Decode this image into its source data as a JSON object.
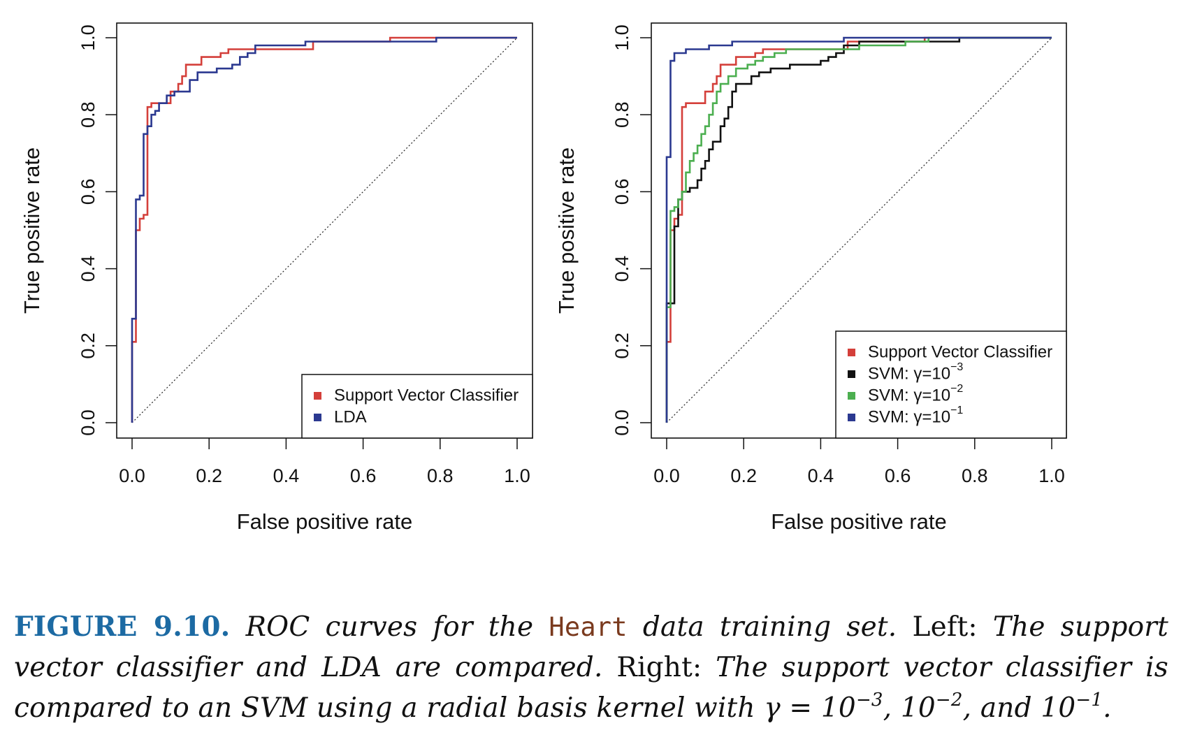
{
  "chart_data": [
    {
      "type": "line",
      "xlabel": "False positive rate",
      "ylabel": "True positive rate",
      "xlim": [
        0,
        1
      ],
      "ylim": [
        0,
        1
      ],
      "xticks": [
        "0.0",
        "0.2",
        "0.4",
        "0.6",
        "0.8",
        "1.0"
      ],
      "yticks": [
        "0.0",
        "0.2",
        "0.4",
        "0.6",
        "0.8",
        "1.0"
      ],
      "legend_position": "bottom-right",
      "diagonal_reference": true,
      "series": [
        {
          "name": "Support Vector Classifier",
          "color": "#d43f3a",
          "points": [
            [
              0,
              0
            ],
            [
              0,
              0.21
            ],
            [
              0.01,
              0.21
            ],
            [
              0.01,
              0.5
            ],
            [
              0.02,
              0.5
            ],
            [
              0.02,
              0.53
            ],
            [
              0.03,
              0.53
            ],
            [
              0.03,
              0.54
            ],
            [
              0.04,
              0.54
            ],
            [
              0.04,
              0.82
            ],
            [
              0.05,
              0.82
            ],
            [
              0.05,
              0.83
            ],
            [
              0.1,
              0.83
            ],
            [
              0.1,
              0.86
            ],
            [
              0.12,
              0.86
            ],
            [
              0.12,
              0.88
            ],
            [
              0.13,
              0.88
            ],
            [
              0.13,
              0.9
            ],
            [
              0.14,
              0.9
            ],
            [
              0.14,
              0.93
            ],
            [
              0.18,
              0.93
            ],
            [
              0.18,
              0.95
            ],
            [
              0.23,
              0.95
            ],
            [
              0.23,
              0.96
            ],
            [
              0.25,
              0.96
            ],
            [
              0.25,
              0.97
            ],
            [
              0.33,
              0.97
            ],
            [
              0.47,
              0.97
            ],
            [
              0.47,
              0.99
            ],
            [
              0.67,
              0.99
            ],
            [
              0.67,
              1.0
            ],
            [
              1.0,
              1.0
            ]
          ]
        },
        {
          "name": "LDA",
          "color": "#2b3990",
          "points": [
            [
              0,
              0
            ],
            [
              0,
              0.27
            ],
            [
              0.01,
              0.27
            ],
            [
              0.01,
              0.58
            ],
            [
              0.02,
              0.58
            ],
            [
              0.02,
              0.59
            ],
            [
              0.03,
              0.59
            ],
            [
              0.03,
              0.75
            ],
            [
              0.04,
              0.75
            ],
            [
              0.04,
              0.77
            ],
            [
              0.05,
              0.77
            ],
            [
              0.05,
              0.8
            ],
            [
              0.06,
              0.8
            ],
            [
              0.06,
              0.81
            ],
            [
              0.07,
              0.81
            ],
            [
              0.07,
              0.83
            ],
            [
              0.09,
              0.83
            ],
            [
              0.09,
              0.85
            ],
            [
              0.11,
              0.85
            ],
            [
              0.11,
              0.86
            ],
            [
              0.15,
              0.86
            ],
            [
              0.15,
              0.89
            ],
            [
              0.17,
              0.89
            ],
            [
              0.17,
              0.91
            ],
            [
              0.22,
              0.91
            ],
            [
              0.22,
              0.92
            ],
            [
              0.26,
              0.92
            ],
            [
              0.26,
              0.93
            ],
            [
              0.28,
              0.93
            ],
            [
              0.28,
              0.95
            ],
            [
              0.3,
              0.95
            ],
            [
              0.3,
              0.96
            ],
            [
              0.32,
              0.96
            ],
            [
              0.32,
              0.98
            ],
            [
              0.45,
              0.98
            ],
            [
              0.45,
              0.99
            ],
            [
              0.79,
              0.99
            ],
            [
              0.79,
              1.0
            ],
            [
              1.0,
              1.0
            ]
          ]
        }
      ]
    },
    {
      "type": "line",
      "xlabel": "False positive rate",
      "ylabel": "True positive rate",
      "xlim": [
        0,
        1
      ],
      "ylim": [
        0,
        1
      ],
      "xticks": [
        "0.0",
        "0.2",
        "0.4",
        "0.6",
        "0.8",
        "1.0"
      ],
      "yticks": [
        "0.0",
        "0.2",
        "0.4",
        "0.6",
        "0.8",
        "1.0"
      ],
      "legend_position": "bottom-right",
      "diagonal_reference": true,
      "series": [
        {
          "name": "Support Vector Classifier",
          "color": "#d43f3a",
          "points": [
            [
              0,
              0
            ],
            [
              0,
              0.21
            ],
            [
              0.01,
              0.21
            ],
            [
              0.01,
              0.5
            ],
            [
              0.02,
              0.5
            ],
            [
              0.02,
              0.53
            ],
            [
              0.03,
              0.53
            ],
            [
              0.03,
              0.54
            ],
            [
              0.04,
              0.54
            ],
            [
              0.04,
              0.82
            ],
            [
              0.05,
              0.82
            ],
            [
              0.05,
              0.83
            ],
            [
              0.1,
              0.83
            ],
            [
              0.1,
              0.86
            ],
            [
              0.12,
              0.86
            ],
            [
              0.12,
              0.88
            ],
            [
              0.13,
              0.88
            ],
            [
              0.13,
              0.9
            ],
            [
              0.14,
              0.9
            ],
            [
              0.14,
              0.93
            ],
            [
              0.18,
              0.93
            ],
            [
              0.18,
              0.95
            ],
            [
              0.23,
              0.95
            ],
            [
              0.23,
              0.96
            ],
            [
              0.25,
              0.96
            ],
            [
              0.25,
              0.97
            ],
            [
              0.33,
              0.97
            ],
            [
              0.47,
              0.97
            ],
            [
              0.47,
              0.99
            ],
            [
              0.67,
              0.99
            ],
            [
              0.67,
              1.0
            ],
            [
              1.0,
              1.0
            ]
          ]
        },
        {
          "name": "SVM: γ=10",
          "exponent": "−3",
          "color": "#111111",
          "points": [
            [
              0,
              0
            ],
            [
              0,
              0.31
            ],
            [
              0.02,
              0.31
            ],
            [
              0.02,
              0.51
            ],
            [
              0.03,
              0.51
            ],
            [
              0.03,
              0.58
            ],
            [
              0.04,
              0.58
            ],
            [
              0.04,
              0.6
            ],
            [
              0.06,
              0.6
            ],
            [
              0.06,
              0.61
            ],
            [
              0.08,
              0.61
            ],
            [
              0.08,
              0.63
            ],
            [
              0.09,
              0.63
            ],
            [
              0.09,
              0.66
            ],
            [
              0.1,
              0.66
            ],
            [
              0.1,
              0.68
            ],
            [
              0.11,
              0.68
            ],
            [
              0.11,
              0.71
            ],
            [
              0.12,
              0.71
            ],
            [
              0.12,
              0.73
            ],
            [
              0.14,
              0.73
            ],
            [
              0.14,
              0.77
            ],
            [
              0.15,
              0.77
            ],
            [
              0.15,
              0.79
            ],
            [
              0.16,
              0.79
            ],
            [
              0.16,
              0.82
            ],
            [
              0.17,
              0.82
            ],
            [
              0.17,
              0.86
            ],
            [
              0.18,
              0.86
            ],
            [
              0.18,
              0.88
            ],
            [
              0.22,
              0.88
            ],
            [
              0.22,
              0.9
            ],
            [
              0.24,
              0.9
            ],
            [
              0.24,
              0.91
            ],
            [
              0.27,
              0.91
            ],
            [
              0.27,
              0.92
            ],
            [
              0.32,
              0.92
            ],
            [
              0.32,
              0.93
            ],
            [
              0.4,
              0.93
            ],
            [
              0.4,
              0.94
            ],
            [
              0.42,
              0.94
            ],
            [
              0.42,
              0.95
            ],
            [
              0.44,
              0.95
            ],
            [
              0.44,
              0.96
            ],
            [
              0.46,
              0.96
            ],
            [
              0.46,
              0.98
            ],
            [
              0.5,
              0.98
            ],
            [
              0.5,
              0.99
            ],
            [
              0.76,
              0.99
            ],
            [
              0.76,
              1.0
            ],
            [
              1.0,
              1.0
            ]
          ]
        },
        {
          "name": "SVM: γ=10",
          "exponent": "−2",
          "color": "#4caf50",
          "points": [
            [
              0,
              0
            ],
            [
              0,
              0.3
            ],
            [
              0.01,
              0.3
            ],
            [
              0.01,
              0.55
            ],
            [
              0.02,
              0.55
            ],
            [
              0.02,
              0.56
            ],
            [
              0.03,
              0.56
            ],
            [
              0.03,
              0.58
            ],
            [
              0.04,
              0.58
            ],
            [
              0.04,
              0.6
            ],
            [
              0.05,
              0.6
            ],
            [
              0.05,
              0.65
            ],
            [
              0.06,
              0.65
            ],
            [
              0.06,
              0.68
            ],
            [
              0.07,
              0.68
            ],
            [
              0.07,
              0.7
            ],
            [
              0.08,
              0.7
            ],
            [
              0.08,
              0.72
            ],
            [
              0.09,
              0.72
            ],
            [
              0.09,
              0.75
            ],
            [
              0.1,
              0.75
            ],
            [
              0.1,
              0.77
            ],
            [
              0.11,
              0.77
            ],
            [
              0.11,
              0.8
            ],
            [
              0.12,
              0.8
            ],
            [
              0.12,
              0.83
            ],
            [
              0.13,
              0.83
            ],
            [
              0.13,
              0.86
            ],
            [
              0.14,
              0.86
            ],
            [
              0.14,
              0.88
            ],
            [
              0.16,
              0.88
            ],
            [
              0.16,
              0.9
            ],
            [
              0.18,
              0.9
            ],
            [
              0.18,
              0.92
            ],
            [
              0.21,
              0.92
            ],
            [
              0.21,
              0.93
            ],
            [
              0.23,
              0.93
            ],
            [
              0.23,
              0.94
            ],
            [
              0.25,
              0.94
            ],
            [
              0.25,
              0.95
            ],
            [
              0.28,
              0.95
            ],
            [
              0.28,
              0.96
            ],
            [
              0.31,
              0.96
            ],
            [
              0.31,
              0.97
            ],
            [
              0.5,
              0.97
            ],
            [
              0.5,
              0.98
            ],
            [
              0.62,
              0.98
            ],
            [
              0.62,
              0.99
            ],
            [
              0.68,
              0.99
            ],
            [
              0.68,
              1.0
            ],
            [
              1.0,
              1.0
            ]
          ]
        },
        {
          "name": "SVM: γ=10",
          "exponent": "−1",
          "color": "#2b3990",
          "points": [
            [
              0,
              0
            ],
            [
              0,
              0.69
            ],
            [
              0.01,
              0.69
            ],
            [
              0.01,
              0.94
            ],
            [
              0.02,
              0.94
            ],
            [
              0.02,
              0.96
            ],
            [
              0.05,
              0.96
            ],
            [
              0.05,
              0.97
            ],
            [
              0.11,
              0.97
            ],
            [
              0.11,
              0.98
            ],
            [
              0.17,
              0.98
            ],
            [
              0.17,
              0.99
            ],
            [
              0.46,
              0.99
            ],
            [
              0.46,
              1.0
            ],
            [
              1.0,
              1.0
            ]
          ]
        }
      ]
    }
  ],
  "caption": {
    "label": "FIGURE 9.10.",
    "t1": "ROC curves for the",
    "code": "Heart",
    "t2": "data training set.",
    "left": "Left:",
    "t3": "The support vector classifier and LDA are compared.",
    "right": "Right:",
    "t4": "The support vector classifier is compared to an SVM using a radial basis kernel with",
    "gamma": "γ = 10",
    "e1": "−3",
    "comma1": ", 10",
    "e2": "−2",
    "t5": ", and 10",
    "e3": "−1",
    "end": "."
  }
}
